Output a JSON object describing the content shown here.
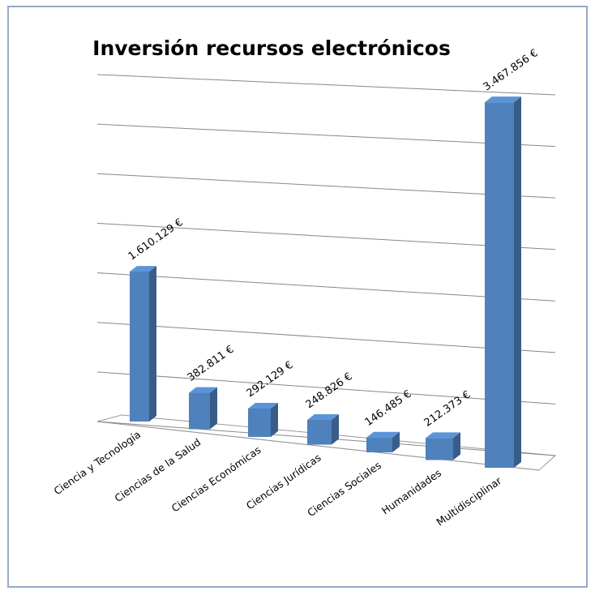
{
  "chart_data": {
    "type": "bar3d",
    "title": "Inversión recursos electrónicos",
    "categories": [
      "Ciencia y Tecnología",
      "Ciencias de la Salud",
      "Ciencias Económicas",
      "Ciencias Jurídicas",
      "Ciencias Sociales",
      "Humanidades",
      "Multidisciplinar"
    ],
    "values": [
      1610129,
      382811,
      292129,
      248826,
      146485,
      212373,
      3467856
    ],
    "value_labels": [
      "1.610.129 €",
      "382.811 €",
      "292.129 €",
      "248.826 €",
      "146.485 €",
      "212.373 €",
      "3.467.856 €"
    ],
    "color": "#4f81bd",
    "ylim": [
      0,
      3500000
    ],
    "yticks": [
      0,
      500000,
      1000000,
      1500000,
      2000000,
      2500000,
      3000000,
      3500000
    ],
    "grid": true
  }
}
